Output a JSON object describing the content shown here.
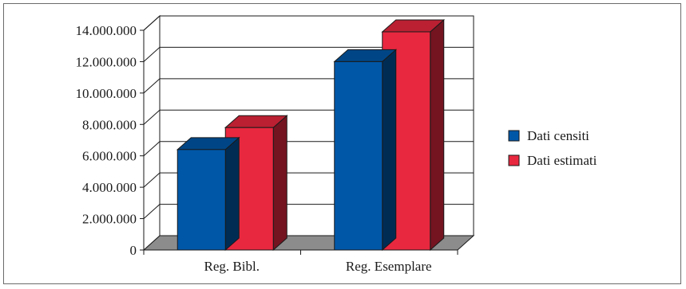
{
  "chart_data": {
    "type": "bar",
    "categories": [
      "Reg. Bibl.",
      "Reg. Esemplare"
    ],
    "series": [
      {
        "name": "Dati censiti",
        "color": "#0057a8",
        "values": [
          6400000,
          12000000
        ]
      },
      {
        "name": "Dati estimati",
        "color": "#e8283f",
        "values": [
          7800000,
          13900000
        ]
      }
    ],
    "ylim": [
      0,
      14000000
    ],
    "yticks": [
      0,
      2000000,
      4000000,
      6000000,
      8000000,
      10000000,
      12000000,
      14000000
    ],
    "ytick_labels": [
      "0",
      "2.000.000",
      "4.000.000",
      "6.000.000",
      "8.000.000",
      "10.000.000",
      "12.000.000",
      "14.000.000"
    ],
    "grid": true,
    "three_d": true,
    "legend_position": "right"
  }
}
